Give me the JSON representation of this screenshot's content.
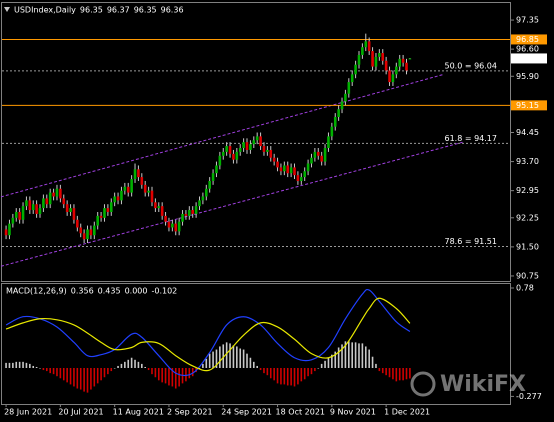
{
  "chart_data": {
    "type": "candlestick",
    "title": "USDIndex,Daily",
    "up_color": "#00b000",
    "down_color": "#e00000",
    "wick_color": "#c8c8c8",
    "ohlc": [
      [
        91.95,
        92.05,
        91.7,
        91.8
      ],
      [
        91.8,
        92.2,
        91.7,
        92.1
      ],
      [
        92.1,
        92.35,
        92.0,
        92.25
      ],
      [
        92.25,
        92.5,
        92.15,
        92.4
      ],
      [
        92.4,
        92.5,
        92.1,
        92.2
      ],
      [
        92.2,
        92.65,
        92.1,
        92.55
      ],
      [
        92.55,
        92.8,
        92.45,
        92.7
      ],
      [
        92.7,
        92.8,
        92.35,
        92.45
      ],
      [
        92.45,
        92.7,
        92.35,
        92.6
      ],
      [
        92.6,
        92.7,
        92.25,
        92.35
      ],
      [
        92.35,
        92.6,
        92.25,
        92.5
      ],
      [
        92.5,
        92.85,
        92.4,
        92.75
      ],
      [
        92.75,
        92.85,
        92.5,
        92.6
      ],
      [
        92.6,
        93.0,
        92.5,
        92.9
      ],
      [
        92.9,
        93.0,
        92.7,
        92.8
      ],
      [
        92.8,
        93.1,
        92.7,
        93.0
      ],
      [
        93.0,
        93.1,
        92.65,
        92.75
      ],
      [
        92.75,
        92.85,
        92.5,
        92.6
      ],
      [
        92.6,
        92.7,
        92.3,
        92.4
      ],
      [
        92.4,
        92.6,
        92.3,
        92.5
      ],
      [
        92.5,
        92.6,
        92.1,
        92.2
      ],
      [
        92.2,
        92.3,
        91.9,
        92.0
      ],
      [
        92.0,
        92.1,
        91.75,
        91.85
      ],
      [
        91.85,
        91.95,
        91.6,
        91.7
      ],
      [
        91.7,
        92.05,
        91.6,
        91.95
      ],
      [
        91.95,
        92.05,
        91.7,
        91.8
      ],
      [
        91.8,
        92.15,
        91.7,
        92.05
      ],
      [
        92.05,
        92.4,
        91.95,
        92.3
      ],
      [
        92.3,
        92.4,
        92.15,
        92.25
      ],
      [
        92.25,
        92.6,
        92.15,
        92.5
      ],
      [
        92.5,
        92.6,
        92.3,
        92.4
      ],
      [
        92.4,
        92.75,
        92.3,
        92.65
      ],
      [
        92.65,
        92.9,
        92.55,
        92.8
      ],
      [
        92.8,
        92.9,
        92.6,
        92.7
      ],
      [
        92.7,
        93.05,
        92.6,
        92.95
      ],
      [
        92.95,
        93.15,
        92.85,
        93.05
      ],
      [
        93.05,
        93.15,
        92.8,
        92.9
      ],
      [
        92.9,
        93.35,
        92.8,
        93.25
      ],
      [
        93.25,
        93.65,
        93.15,
        93.5
      ],
      [
        93.5,
        93.6,
        93.2,
        93.3
      ],
      [
        93.3,
        93.4,
        93.0,
        93.1
      ],
      [
        93.1,
        93.2,
        92.8,
        92.9
      ],
      [
        92.9,
        93.05,
        92.8,
        92.95
      ],
      [
        92.95,
        93.05,
        92.55,
        92.65
      ],
      [
        92.65,
        92.75,
        92.4,
        92.5
      ],
      [
        92.5,
        92.65,
        92.4,
        92.55
      ],
      [
        92.55,
        92.65,
        92.2,
        92.3
      ],
      [
        92.3,
        92.4,
        92.05,
        92.15
      ],
      [
        92.15,
        92.25,
        91.9,
        92.0
      ],
      [
        92.0,
        92.2,
        91.9,
        92.1
      ],
      [
        92.1,
        92.2,
        91.8,
        91.9
      ],
      [
        91.9,
        92.25,
        91.8,
        92.15
      ],
      [
        92.15,
        92.45,
        92.05,
        92.35
      ],
      [
        92.35,
        92.45,
        92.2,
        92.3
      ],
      [
        92.3,
        92.55,
        92.2,
        92.45
      ],
      [
        92.45,
        92.55,
        92.25,
        92.35
      ],
      [
        92.35,
        92.65,
        92.25,
        92.55
      ],
      [
        92.55,
        92.8,
        92.45,
        92.7
      ],
      [
        92.7,
        92.9,
        92.6,
        92.8
      ],
      [
        92.8,
        93.1,
        92.7,
        93.0
      ],
      [
        93.0,
        93.3,
        92.9,
        93.2
      ],
      [
        93.2,
        93.5,
        93.1,
        93.4
      ],
      [
        93.4,
        93.7,
        93.3,
        93.6
      ],
      [
        93.6,
        93.95,
        93.5,
        93.85
      ],
      [
        93.85,
        94.05,
        93.75,
        93.95
      ],
      [
        93.95,
        94.2,
        93.85,
        94.1
      ],
      [
        94.1,
        94.2,
        93.8,
        93.9
      ],
      [
        93.9,
        94.0,
        93.65,
        93.75
      ],
      [
        93.75,
        94.05,
        93.65,
        93.95
      ],
      [
        93.95,
        94.15,
        93.85,
        94.05
      ],
      [
        94.05,
        94.3,
        93.95,
        94.2
      ],
      [
        94.2,
        94.3,
        93.9,
        94.0
      ],
      [
        94.0,
        94.25,
        93.9,
        94.15
      ],
      [
        94.15,
        94.35,
        94.05,
        94.25
      ],
      [
        94.25,
        94.45,
        94.15,
        94.35
      ],
      [
        94.35,
        94.45,
        94.0,
        94.1
      ],
      [
        94.1,
        94.2,
        93.85,
        93.95
      ],
      [
        93.95,
        94.1,
        93.85,
        94.0
      ],
      [
        94.0,
        94.1,
        93.7,
        93.8
      ],
      [
        93.8,
        93.9,
        93.6,
        93.7
      ],
      [
        93.7,
        93.8,
        93.45,
        93.55
      ],
      [
        93.55,
        93.65,
        93.35,
        93.45
      ],
      [
        93.45,
        93.7,
        93.35,
        93.6
      ],
      [
        93.6,
        93.7,
        93.3,
        93.4
      ],
      [
        93.4,
        93.65,
        93.3,
        93.55
      ],
      [
        93.55,
        93.65,
        93.25,
        93.35
      ],
      [
        93.35,
        93.45,
        93.1,
        93.2
      ],
      [
        93.2,
        93.4,
        93.1,
        93.3
      ],
      [
        93.3,
        93.55,
        93.2,
        93.45
      ],
      [
        93.45,
        93.75,
        93.35,
        93.65
      ],
      [
        93.65,
        93.9,
        93.55,
        93.8
      ],
      [
        93.8,
        94.05,
        93.7,
        93.95
      ],
      [
        93.95,
        94.05,
        93.75,
        93.85
      ],
      [
        93.85,
        93.95,
        93.6,
        93.7
      ],
      [
        93.7,
        94.15,
        93.6,
        94.05
      ],
      [
        94.05,
        94.45,
        93.95,
        94.35
      ],
      [
        94.35,
        94.7,
        94.25,
        94.6
      ],
      [
        94.6,
        94.95,
        94.5,
        94.85
      ],
      [
        94.85,
        95.15,
        94.75,
        95.05
      ],
      [
        95.05,
        95.35,
        94.95,
        95.25
      ],
      [
        95.25,
        95.55,
        95.15,
        95.45
      ],
      [
        95.45,
        95.85,
        95.35,
        95.75
      ],
      [
        95.75,
        96.05,
        95.65,
        95.95
      ],
      [
        95.95,
        96.3,
        95.85,
        96.2
      ],
      [
        96.2,
        96.55,
        96.1,
        96.45
      ],
      [
        96.45,
        96.75,
        96.35,
        96.65
      ],
      [
        96.65,
        97.0,
        96.55,
        96.8
      ],
      [
        96.8,
        96.9,
        96.45,
        96.55
      ],
      [
        96.55,
        96.65,
        96.05,
        96.15
      ],
      [
        96.15,
        96.5,
        96.05,
        96.4
      ],
      [
        96.4,
        96.6,
        96.3,
        96.5
      ],
      [
        96.5,
        96.6,
        96.2,
        96.3
      ],
      [
        96.3,
        96.4,
        95.95,
        96.05
      ],
      [
        96.05,
        96.15,
        95.65,
        95.75
      ],
      [
        95.75,
        96.05,
        95.65,
        95.95
      ],
      [
        95.95,
        96.25,
        95.85,
        96.15
      ],
      [
        96.15,
        96.45,
        96.05,
        96.35
      ],
      [
        96.35,
        96.45,
        96.15,
        96.25
      ],
      [
        96.25,
        96.35,
        95.95,
        96.05
      ],
      [
        96.35,
        96.37,
        96.35,
        96.36
      ]
    ],
    "xlim": [
      -1.2,
      148.5
    ],
    "xticks": [
      {
        "value": 0,
        "label": "28 Jun 2021"
      },
      {
        "value": 16,
        "label": "20 Jul 2021"
      },
      {
        "value": 32,
        "label": "11 Aug 2021"
      },
      {
        "value": 48,
        "label": "2 Sep 2021"
      },
      {
        "value": 64,
        "label": "24 Sep 2021"
      },
      {
        "value": 80,
        "label": "18 Oct 2021"
      },
      {
        "value": 96,
        "label": "9 Nov 2021"
      },
      {
        "value": 112,
        "label": "1 Dec 2021"
      }
    ],
    "ylim": [
      90.62,
      97.79
    ],
    "yticks": [
      97.35,
      {
        "value": 96.6,
        "label": "96.60"
      },
      {
        "value": 95.9,
        "label": "95.90"
      },
      94.45,
      {
        "value": 93.7,
        "label": "93.70"
      },
      92.95,
      92.25,
      {
        "value": 91.5,
        "label": "91.50"
      },
      90.75
    ],
    "hlines": [
      {
        "value": 96.85,
        "color": "#ff9900"
      },
      {
        "value": 95.15,
        "color": "#ff9900"
      }
    ],
    "levels": [
      {
        "label": "50.0 = 96.04",
        "value": 96.04
      },
      {
        "label": "61.8 = 94.17",
        "value": 94.17
      },
      {
        "label": "78.6 = 91.51",
        "value": 91.51
      }
    ],
    "trendlines": [
      {
        "x": [
          -1.5,
          129
        ],
        "y": [
          92.79,
          95.95
        ],
        "color": "#a040e0"
      },
      {
        "x": [
          -1.5,
          135
        ],
        "y": [
          91.0,
          94.21
        ],
        "color": "#a040e0"
      }
    ],
    "indicator": {
      "type": "macd",
      "label": "MACD(12,26,9)",
      "readout": [
        0.356,
        0.435,
        {
          "value": 0,
          "label": "0.000"
        },
        -0.102
      ],
      "x": [
        0,
        5,
        10,
        15,
        20,
        24,
        28,
        32,
        37,
        40,
        45,
        50,
        55,
        60,
        65,
        70,
        75,
        80,
        85,
        90,
        95,
        100,
        105,
        107,
        110,
        115,
        119
      ],
      "main": {
        "color": "#2040ff",
        "values": [
          0.42,
          0.5,
          0.48,
          0.4,
          0.25,
          0.12,
          0.13,
          0.18,
          0.33,
          0.3,
          0.12,
          -0.05,
          -0.05,
          0.15,
          0.42,
          0.5,
          0.42,
          0.24,
          0.1,
          0.08,
          0.2,
          0.48,
          0.72,
          0.76,
          0.65,
          0.45,
          0.356
        ]
      },
      "signal": {
        "color": "#e8e800",
        "values": [
          0.38,
          0.44,
          0.48,
          0.47,
          0.42,
          0.34,
          0.25,
          0.18,
          0.2,
          0.25,
          0.24,
          0.12,
          0.02,
          -0.02,
          0.14,
          0.32,
          0.44,
          0.4,
          0.28,
          0.14,
          0.1,
          0.22,
          0.48,
          0.58,
          0.68,
          0.58,
          0.435
        ]
      },
      "histogram": {
        "up_color": "#c8c8c8",
        "down_color": "#d00000",
        "values": [
          0.05,
          0.05,
          0.05,
          0.06,
          0.06,
          0.06,
          0.05,
          0.04,
          0.02,
          0.01,
          0.0,
          -0.02,
          -0.03,
          -0.05,
          -0.06,
          -0.08,
          -0.1,
          -0.12,
          -0.14,
          -0.16,
          -0.18,
          -0.2,
          -0.21,
          -0.23,
          -0.24,
          -0.21,
          -0.18,
          -0.15,
          -0.12,
          -0.09,
          -0.06,
          -0.03,
          0.0,
          0.02,
          0.04,
          0.06,
          0.08,
          0.1,
          0.08,
          0.06,
          0.04,
          0.01,
          -0.02,
          -0.06,
          -0.09,
          -0.12,
          -0.14,
          -0.15,
          -0.17,
          -0.18,
          -0.2,
          -0.18,
          -0.15,
          -0.13,
          -0.1,
          -0.08,
          -0.04,
          0.0,
          0.04,
          0.09,
          0.14,
          0.16,
          0.18,
          0.21,
          0.23,
          0.25,
          0.24,
          0.22,
          0.21,
          0.19,
          0.18,
          0.14,
          0.1,
          0.06,
          0.02,
          -0.02,
          -0.05,
          -0.07,
          -0.1,
          -0.12,
          -0.15,
          -0.16,
          -0.16,
          -0.17,
          -0.17,
          -0.18,
          -0.16,
          -0.13,
          -0.11,
          -0.08,
          -0.06,
          -0.03,
          0.0,
          0.04,
          0.07,
          0.1,
          0.13,
          0.16,
          0.2,
          0.23,
          0.26,
          0.26,
          0.25,
          0.25,
          0.24,
          0.24,
          0.21,
          0.18,
          0.11,
          0.04,
          -0.03,
          -0.05,
          -0.07,
          -0.09,
          -0.11,
          -0.13,
          -0.12,
          -0.12,
          -0.11,
          -0.102
        ]
      },
      "ylim": [
        -0.351,
        0.819
      ],
      "yticks": [
        0.78,
        -0.277
      ]
    },
    "watermark": "WikiFX"
  }
}
